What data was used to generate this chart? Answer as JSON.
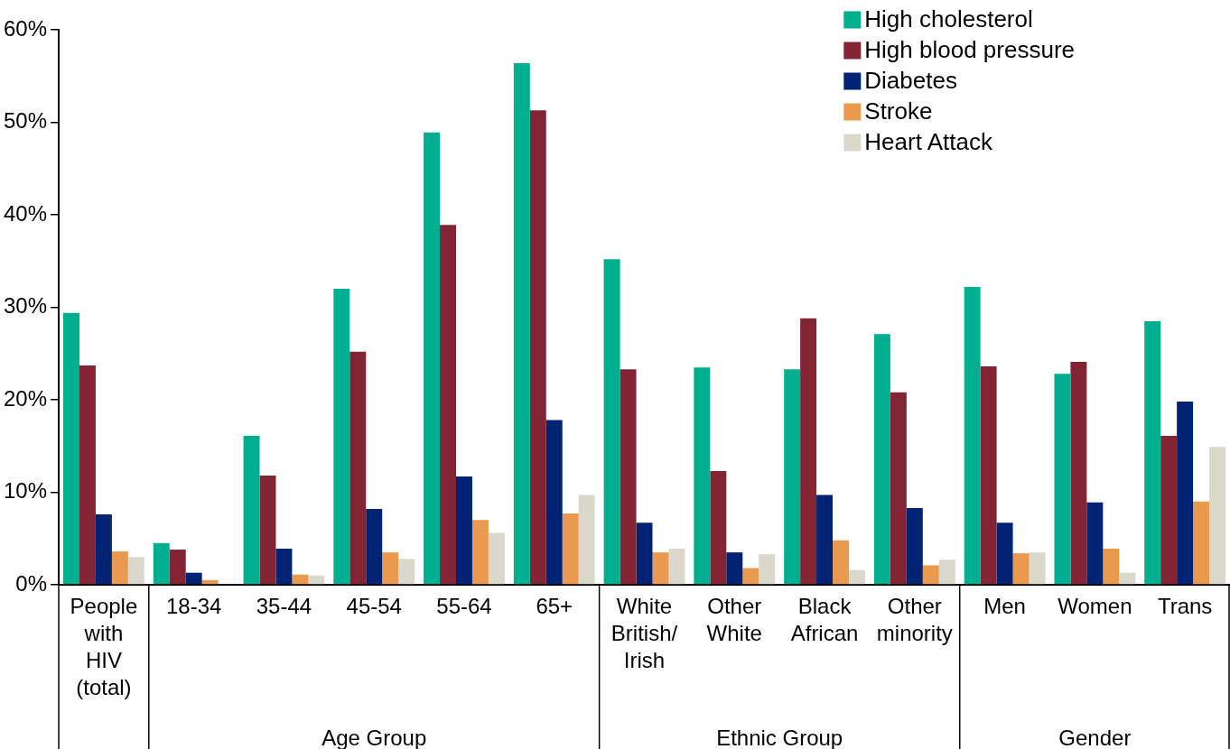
{
  "chart_data": {
    "type": "bar",
    "categories": [
      "People with HIV (total)",
      "18-34",
      "35-44",
      "45-54",
      "55-64",
      "65+",
      "White British/ Irish",
      "Other White",
      "Black African",
      "Other minority",
      "Men",
      "Women",
      "Trans"
    ],
    "series": [
      {
        "name": "High cholesterol",
        "color": "#00af8f",
        "values": [
          29.4,
          4.5,
          16.1,
          32.0,
          48.9,
          56.4,
          35.2,
          23.5,
          23.3,
          27.1,
          32.2,
          22.8,
          28.5
        ]
      },
      {
        "name": "High blood pressure",
        "color": "#822433",
        "values": [
          23.7,
          3.8,
          11.8,
          25.2,
          38.9,
          51.3,
          23.3,
          12.3,
          28.8,
          20.8,
          23.6,
          24.1,
          16.1
        ]
      },
      {
        "name": "Diabetes",
        "color": "#002373",
        "values": [
          7.6,
          1.3,
          3.9,
          8.2,
          11.7,
          17.8,
          6.7,
          3.5,
          9.7,
          8.3,
          6.7,
          8.9,
          19.8
        ]
      },
      {
        "name": "Stroke",
        "color": "#e99a4f",
        "values": [
          3.6,
          0.5,
          1.1,
          3.5,
          7.0,
          7.7,
          3.5,
          1.8,
          4.8,
          2.1,
          3.4,
          3.9,
          9.0
        ]
      },
      {
        "name": "Heart Attack",
        "color": "#dad8cb",
        "values": [
          3.0,
          0,
          1.0,
          2.8,
          5.6,
          9.7,
          3.9,
          3.3,
          1.6,
          2.7,
          3.5,
          1.3,
          14.9
        ]
      }
    ],
    "ylim": [
      0,
      60
    ],
    "yticks": [
      {
        "value": 0,
        "label": "0%"
      },
      {
        "value": 10,
        "label": "10%"
      },
      {
        "value": 20,
        "label": "20%"
      },
      {
        "value": 30,
        "label": "30%"
      },
      {
        "value": 40,
        "label": "40%"
      },
      {
        "value": 50,
        "label": "50%"
      },
      {
        "value": 60,
        "label": "60%"
      }
    ],
    "grid": false,
    "legend": "top right",
    "annotations": [
      "Age Group",
      "Ethnic Group",
      "Gender"
    ]
  }
}
